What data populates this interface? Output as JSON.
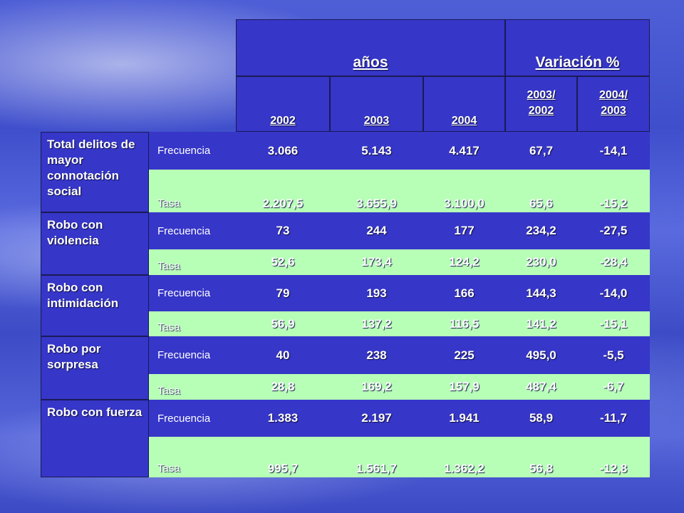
{
  "header": {
    "anos_label": "años",
    "variacion_label": "Variación %",
    "years": [
      "2002",
      "2003",
      "2004"
    ],
    "variations": [
      {
        "top": "2003/",
        "bottom": "2002"
      },
      {
        "top": "2004/",
        "bottom": "2003"
      }
    ]
  },
  "groups": [
    {
      "label": "Total delitos de mayor connotación social",
      "rows": [
        {
          "type": "Frecuencia",
          "values": [
            "3.066",
            "5.143",
            "4.417",
            "67,7",
            "-14,1"
          ]
        },
        {
          "type": "Tasa",
          "values": [
            "2.207,5",
            "3.655,9",
            "3.100,0",
            "65,6",
            "-15,2"
          ]
        }
      ]
    },
    {
      "label": "Robo con violencia",
      "rows": [
        {
          "type": "Frecuencia",
          "values": [
            "73",
            "244",
            "177",
            "234,2",
            "-27,5"
          ]
        },
        {
          "type": "Tasa",
          "values": [
            "52,6",
            "173,4",
            "124,2",
            "230,0",
            "-28,4"
          ]
        }
      ]
    },
    {
      "label": "Robo con intimidación",
      "rows": [
        {
          "type": "Frecuencia",
          "values": [
            "79",
            "193",
            "166",
            "144,3",
            "-14,0"
          ]
        },
        {
          "type": "Tasa",
          "values": [
            "56,9",
            "137,2",
            "116,5",
            "141,2",
            "-15,1"
          ]
        }
      ]
    },
    {
      "label": "Robo por sorpresa",
      "rows": [
        {
          "type": "Frecuencia",
          "values": [
            "40",
            "238",
            "225",
            "495,0",
            "-5,5"
          ]
        },
        {
          "type": "Tasa",
          "values": [
            "28,8",
            "169,2",
            "157,9",
            "487,4",
            "-6,7"
          ]
        }
      ]
    },
    {
      "label": "Robo con fuerza",
      "rows": [
        {
          "type": "Frecuencia",
          "values": [
            "1.383",
            "2.197",
            "1.941",
            "58,9",
            "-11,7"
          ]
        },
        {
          "type": "Tasa",
          "values": [
            "995,7",
            "1.561,7",
            "1.362,2",
            "56,8",
            "-12,8"
          ]
        }
      ]
    }
  ],
  "colors": {
    "header_bg": "#3636c8",
    "frecuencia_bg": "#3636c8",
    "tasa_bg": "#b7ffb7",
    "text": "#ffffff"
  }
}
